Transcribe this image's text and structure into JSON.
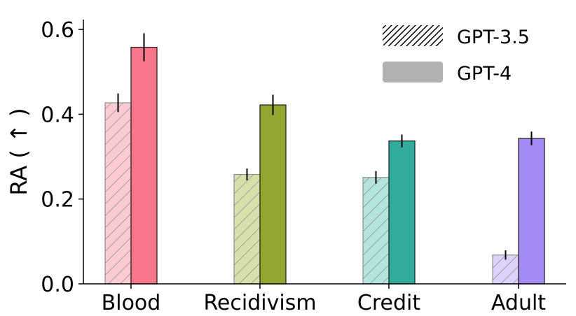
{
  "chart_data": {
    "type": "bar",
    "categories": [
      "Blood",
      "Recidivism",
      "Credit",
      "Adult"
    ],
    "ylabel": "RA ( ↑ )",
    "ylim": [
      0,
      0.62
    ],
    "yticks": [
      "0.0",
      "0.2",
      "0.4",
      "0.6"
    ],
    "legend_position": "top-right",
    "grid": false,
    "series": [
      {
        "name": "GPT-3.5",
        "style": "hatched-light",
        "values": [
          0.427,
          0.258,
          0.251,
          0.068
        ],
        "errors": [
          0.022,
          0.014,
          0.015,
          0.011
        ]
      },
      {
        "name": "GPT-4",
        "style": "solid",
        "values": [
          0.558,
          0.422,
          0.337,
          0.343
        ],
        "errors": [
          0.033,
          0.024,
          0.015,
          0.016
        ]
      }
    ],
    "colors": {
      "solid": [
        "#f7768c",
        "#95a531",
        "#31ab9c",
        "#a48af4"
      ],
      "light": [
        "#fccad3",
        "#d9dfab",
        "#b4e4de",
        "#ddd2fb"
      ],
      "legend_gpt35": "#000000",
      "legend_gpt4": "#b3b0b0"
    }
  }
}
